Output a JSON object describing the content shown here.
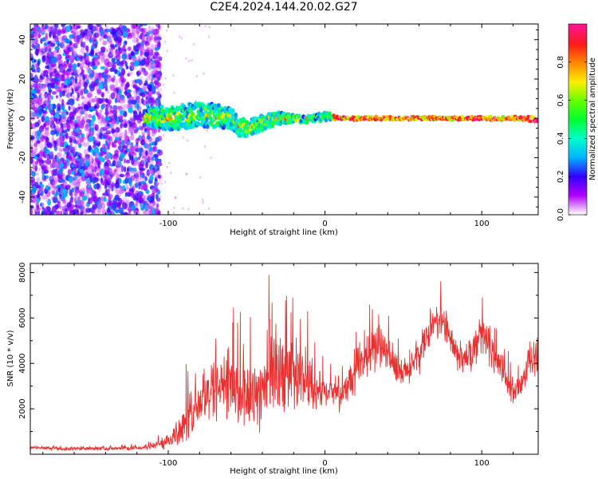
{
  "title": "C2E4.2024.144.20.02.G27",
  "chart_data": [
    {
      "type": "heatmap",
      "panel": "spectrogram",
      "xlabel": "Height of straight line (km)",
      "ylabel": "Frequency (Hz)",
      "xlim": [
        -188,
        136
      ],
      "ylim": [
        -49,
        48
      ],
      "xticks": [
        -100,
        0,
        100
      ],
      "yticks": [
        -40,
        -20,
        0,
        20,
        40
      ],
      "colorbar": {
        "label": "Normalized spectral amplitude",
        "range": [
          0.0,
          1.0
        ],
        "ticks": [
          0.0,
          0.2,
          0.4,
          0.6,
          0.8
        ],
        "tick_labels": [
          "0.0",
          "0.2",
          "0.4",
          "0.6",
          "0.8"
        ],
        "colors": [
          "#ffffff",
          "#b200ff",
          "#3300ff",
          "#00b3ff",
          "#00ffcc",
          "#00ff33",
          "#66ff00",
          "#ffee00",
          "#ff8800",
          "#ff1a1a",
          "#ff1493"
        ]
      },
      "regions": [
        {
          "name": "noise",
          "x_range": [
            -188,
            -105
          ],
          "freq_range": [
            -49,
            48
          ],
          "amplitude": 0.2
        },
        {
          "name": "carrier",
          "x_range": [
            -115,
            136
          ],
          "center_freq_hz": 0,
          "amplitude": 0.9
        }
      ],
      "carrier_track": {
        "x": [
          -115,
          -110,
          -100,
          -90,
          -80,
          -70,
          -60,
          -55,
          -50,
          -45,
          -40,
          -30,
          -20,
          -10,
          0,
          10,
          20,
          40,
          60,
          80,
          100,
          120,
          136
        ],
        "freq_hz": [
          0,
          1,
          0,
          1,
          2,
          1,
          0,
          -4,
          -5,
          -4,
          -2,
          0,
          0,
          0,
          1,
          0,
          0,
          0,
          0,
          0,
          0,
          0,
          0
        ],
        "spread_hz": [
          4,
          5,
          6,
          6,
          6,
          6,
          5,
          5,
          4,
          4,
          4,
          3,
          2,
          2,
          2,
          1,
          1,
          1,
          1,
          1,
          1,
          1,
          2
        ]
      }
    },
    {
      "type": "line",
      "panel": "snr",
      "xlabel": "Height of straight line (km)",
      "ylabel": "SNR (10 * v/v)",
      "xlim": [
        -188,
        136
      ],
      "ylim": [
        0,
        8400
      ],
      "xticks": [
        -100,
        0,
        100
      ],
      "yticks": [
        2000,
        4000,
        6000,
        8000
      ],
      "color": "#e83232",
      "series": [
        {
          "x": [
            -188,
            -170,
            -150,
            -130,
            -115,
            -105,
            -100,
            -95,
            -90,
            -85,
            -80,
            -75,
            -70,
            -65,
            -60,
            -55,
            -50,
            -45,
            -40,
            -35,
            -30,
            -25,
            -20,
            -15,
            -10,
            -5,
            0,
            5,
            10,
            15,
            20,
            25,
            30,
            35,
            40,
            45,
            50,
            55,
            60,
            65,
            70,
            75,
            80,
            85,
            90,
            95,
            100,
            105,
            110,
            115,
            120,
            125,
            130,
            136
          ],
          "y": [
            300,
            250,
            250,
            250,
            300,
            450,
            600,
            900,
            1300,
            1800,
            2300,
            2700,
            2800,
            2900,
            3000,
            2800,
            2600,
            2800,
            3000,
            3300,
            3500,
            3500,
            3400,
            3200,
            3000,
            2900,
            2700,
            2600,
            2500,
            3000,
            3600,
            4200,
            4600,
            5000,
            4600,
            3700,
            3500,
            3800,
            4400,
            5200,
            5700,
            5800,
            5000,
            4300,
            4200,
            4600,
            5400,
            4700,
            4000,
            3400,
            2800,
            3100,
            3800,
            4100
          ],
          "noise_amplitude": [
            80,
            80,
            80,
            80,
            120,
            200,
            450,
            700,
            900,
            1100,
            1300,
            1400,
            1500,
            1600,
            1700,
            1700,
            1800,
            1800,
            1800,
            1800,
            1800,
            1700,
            1600,
            1400,
            1200,
            1000,
            800,
            700,
            700,
            800,
            900,
            1000,
            1000,
            1000,
            800,
            700,
            700,
            700,
            800,
            900,
            1000,
            900,
            800,
            700,
            700,
            800,
            900,
            800,
            700,
            700,
            600,
            600,
            700,
            700
          ]
        }
      ]
    }
  ]
}
